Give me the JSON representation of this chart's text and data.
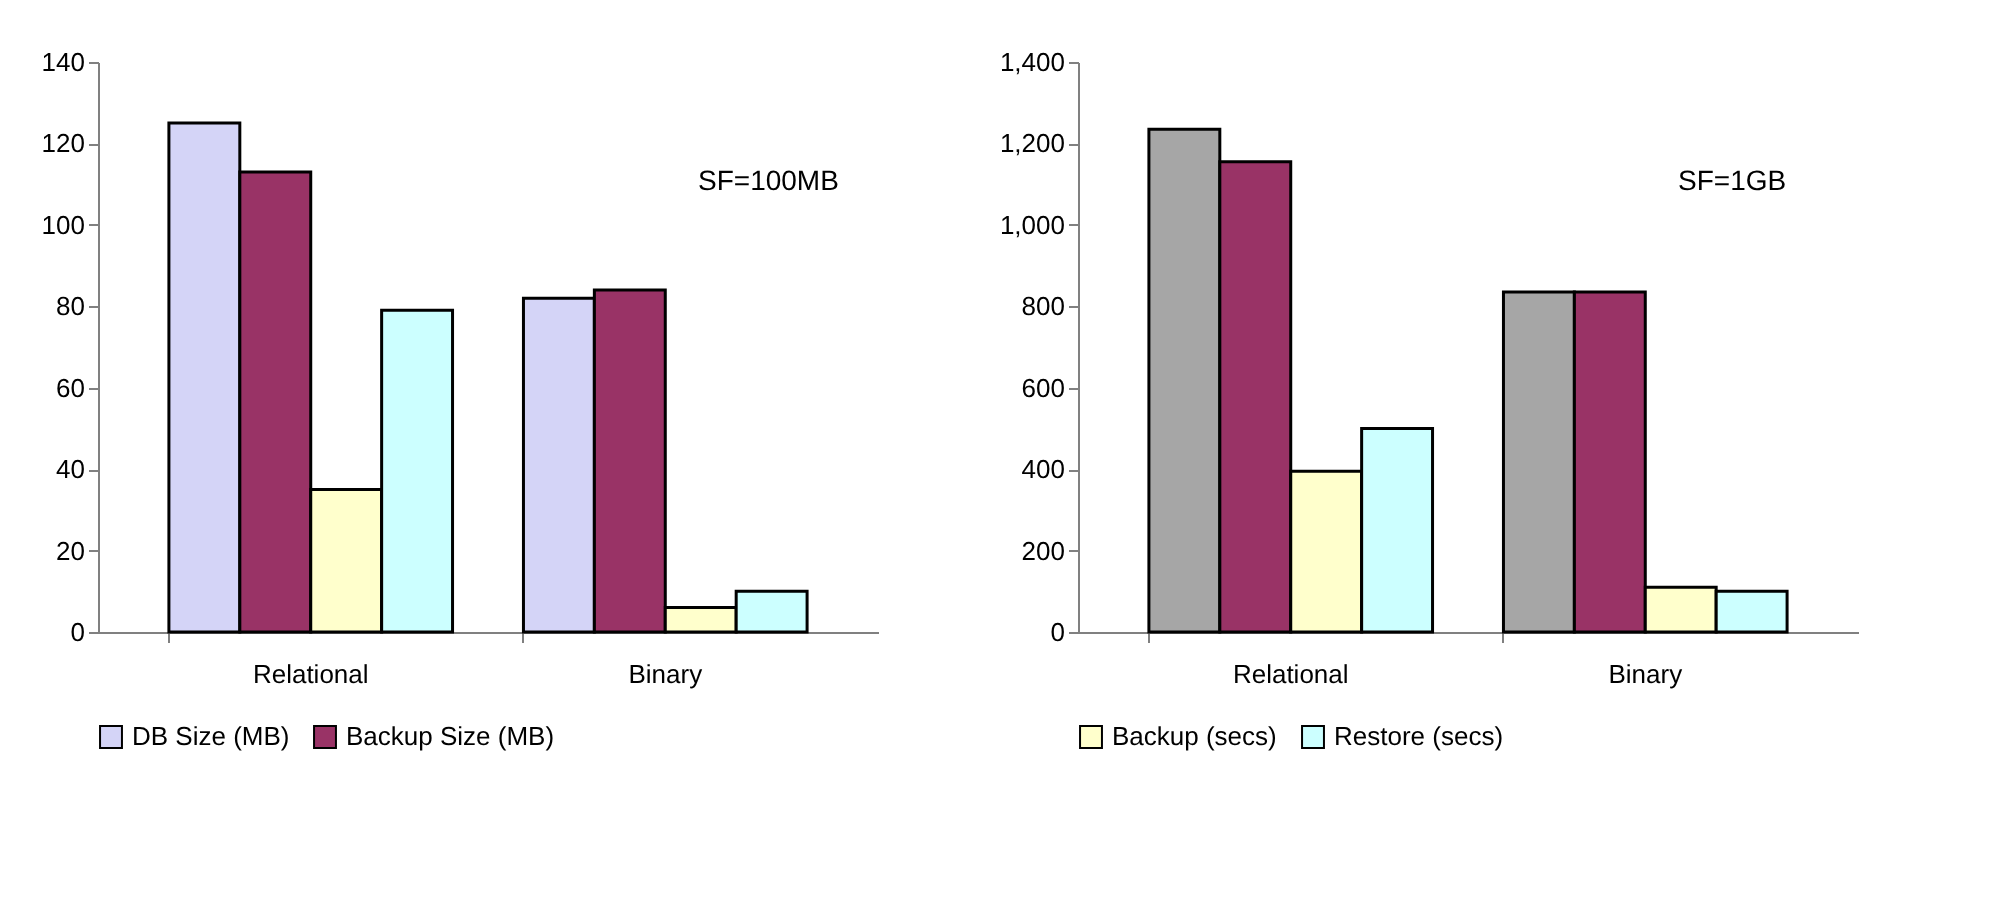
{
  "chart_data": [
    {
      "type": "bar",
      "categories": [
        "Relational",
        "Binary"
      ],
      "annotations": [
        "SF=100MB"
      ],
      "ylim": [
        0,
        140
      ],
      "yticks": [
        0,
        20,
        40,
        60,
        80,
        100,
        120,
        140
      ],
      "grid": false,
      "legend": "bottom",
      "series": [
        {
          "name": "DB Size (MB)",
          "color": "#d4d4f7",
          "values": [
            125,
            82
          ]
        },
        {
          "name": "Backup Size (MB)",
          "color": "#993366",
          "values": [
            113,
            84
          ]
        },
        {
          "color": "#ffffcc",
          "values": [
            35,
            6
          ]
        },
        {
          "color": "#ccffff",
          "values": [
            79,
            10
          ]
        }
      ]
    },
    {
      "type": "bar",
      "categories": [
        "Relational",
        "Binary"
      ],
      "annotations": [
        "SF=1GB"
      ],
      "ylim": [
        0,
        1400
      ],
      "yticks": [
        0,
        200,
        400,
        600,
        800,
        {
          "value": 1000,
          "label": "1,000"
        },
        {
          "value": 1200,
          "label": "1,200"
        },
        {
          "value": 1400,
          "label": "1,400"
        }
      ],
      "grid": false,
      "legend": "bottom",
      "series": [
        {
          "color": "#a6a6a6",
          "values": [
            1235,
            835
          ]
        },
        {
          "color": "#993366",
          "values": [
            1155,
            835
          ]
        },
        {
          "name": "Backup (secs)",
          "color": "#ffffcc",
          "values": [
            395,
            110
          ]
        },
        {
          "name": "Restore (secs)",
          "color": "#ccffff",
          "values": [
            500,
            100
          ]
        }
      ]
    }
  ]
}
